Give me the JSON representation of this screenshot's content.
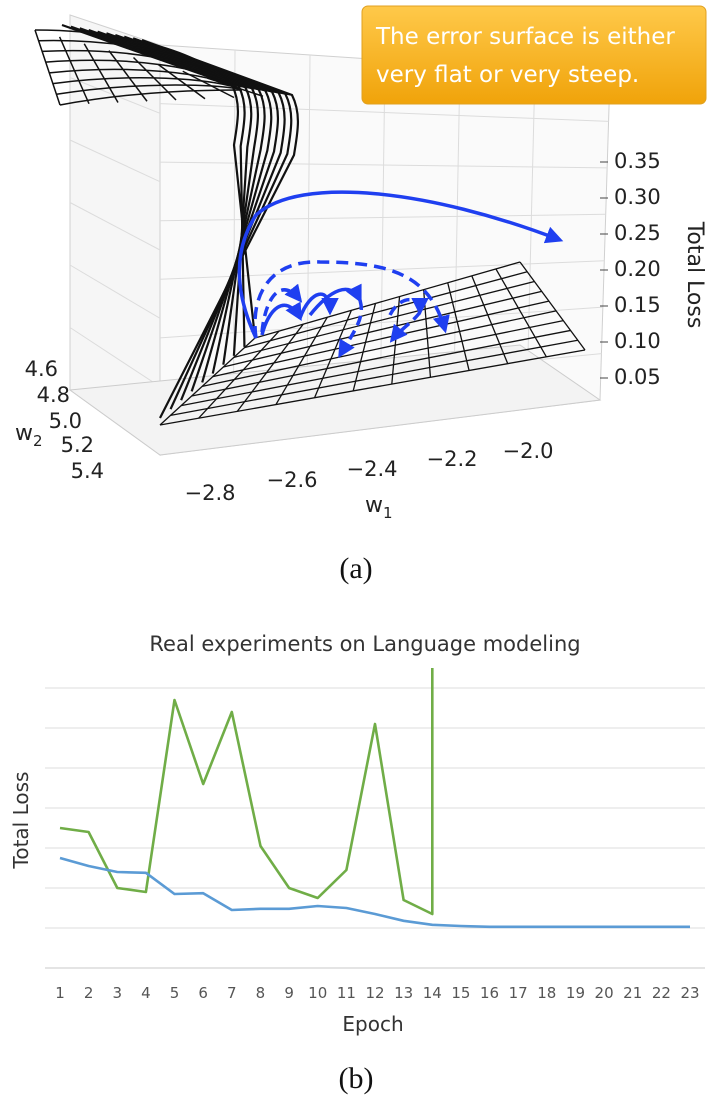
{
  "callout": {
    "line1": "The error surface is either",
    "line2": "very flat or very steep."
  },
  "panel_a": {
    "label": "(a)",
    "zlabel": "Total Loss",
    "xlabel": "w",
    "xlabel_sub": "1",
    "ylabel": "w",
    "ylabel_sub": "2",
    "z_ticks": [
      "0.35",
      "0.30",
      "0.25",
      "0.20",
      "0.15",
      "0.10",
      "0.05"
    ],
    "x_ticks": [
      "−2.8",
      "−2.6",
      "−2.4",
      "−2.2",
      "−2.0"
    ],
    "y_ticks": [
      "4.6",
      "4.8",
      "5.0",
      "5.2",
      "5.4"
    ]
  },
  "panel_b": {
    "label": "(b)",
    "title": "Real experiments on Language modeling",
    "ylabel": "Total Loss",
    "xlabel": "Epoch"
  },
  "chart_data": [
    {
      "type": "surface",
      "title": "",
      "xlabel": "w1",
      "ylabel": "w2",
      "zlabel": "Total Loss",
      "x_ticks": [
        -2.8,
        -2.6,
        -2.4,
        -2.2,
        -2.0
      ],
      "y_ticks": [
        4.6,
        4.8,
        5.0,
        5.2,
        5.4
      ],
      "z_ticks": [
        0.05,
        0.1,
        0.15,
        0.2,
        0.25,
        0.3,
        0.35
      ],
      "grid": true
    },
    {
      "type": "line",
      "title": "Real experiments on Language modeling",
      "xlabel": "Epoch",
      "ylabel": "Total Loss",
      "x": [
        1,
        2,
        3,
        4,
        5,
        6,
        7,
        8,
        9,
        10,
        11,
        12,
        13,
        14,
        15,
        16,
        17,
        18,
        19,
        20,
        21,
        22,
        23
      ],
      "ylim": [
        0,
        7.5
      ],
      "grid": true,
      "series": [
        {
          "color": "#70ad47",
          "values": [
            3.5,
            3.4,
            2.0,
            1.9,
            6.7,
            4.6,
            6.4,
            3.05,
            2.0,
            1.75,
            2.45,
            6.1,
            1.7,
            1.35,
            null,
            null,
            null,
            null,
            null,
            null,
            null,
            null,
            null
          ],
          "spike_at_end": 14
        },
        {
          "color": "#5b9bd5",
          "values": [
            2.75,
            2.55,
            2.4,
            2.38,
            1.85,
            1.87,
            1.45,
            1.48,
            1.48,
            1.55,
            1.5,
            1.35,
            1.18,
            1.08,
            1.05,
            1.03,
            1.03,
            1.03,
            1.03,
            1.03,
            1.03,
            1.03,
            1.03
          ]
        }
      ]
    }
  ]
}
